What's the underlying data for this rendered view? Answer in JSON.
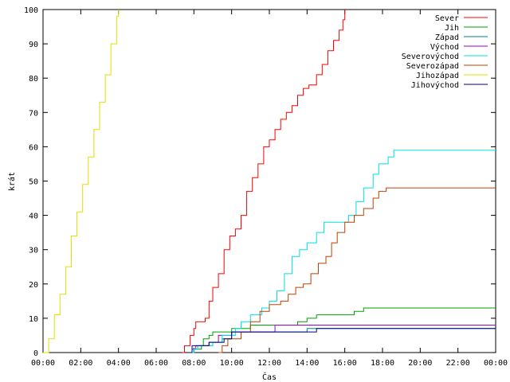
{
  "chart_data": {
    "type": "line",
    "xlabel": "Čas",
    "ylabel": "krát",
    "xlim": [
      0,
      24
    ],
    "ylim": [
      0,
      100
    ],
    "x_ticks": [
      {
        "value": 0,
        "label": "00:00"
      },
      {
        "value": 2,
        "label": "02:00"
      },
      {
        "value": 4,
        "label": "04:00"
      },
      {
        "value": 6,
        "label": "06:00"
      },
      {
        "value": 8,
        "label": "08:00"
      },
      {
        "value": 10,
        "label": "10:00"
      },
      {
        "value": 12,
        "label": "12:00"
      },
      {
        "value": 14,
        "label": "14:00"
      },
      {
        "value": 16,
        "label": "16:00"
      },
      {
        "value": 18,
        "label": "18:00"
      },
      {
        "value": 20,
        "label": "20:00"
      },
      {
        "value": 22,
        "label": "22:00"
      },
      {
        "value": 24,
        "label": "00:00"
      }
    ],
    "y_ticks": [
      {
        "value": 0,
        "label": "0"
      },
      {
        "value": 10,
        "label": "10"
      },
      {
        "value": 20,
        "label": "20"
      },
      {
        "value": 30,
        "label": "30"
      },
      {
        "value": 40,
        "label": "40"
      },
      {
        "value": 50,
        "label": "50"
      },
      {
        "value": 60,
        "label": "60"
      },
      {
        "value": 70,
        "label": "70"
      },
      {
        "value": 80,
        "label": "80"
      },
      {
        "value": 90,
        "label": "90"
      },
      {
        "value": 100,
        "label": "100"
      }
    ],
    "grid": false,
    "legend": "top-right",
    "series": [
      {
        "name": "Sever",
        "color": "#ff0000",
        "points": [
          [
            7.4,
            0
          ],
          [
            7.5,
            2
          ],
          [
            7.7,
            2
          ],
          [
            7.8,
            5
          ],
          [
            8.0,
            7
          ],
          [
            8.1,
            9
          ],
          [
            8.5,
            9
          ],
          [
            8.6,
            10
          ],
          [
            8.8,
            15
          ],
          [
            9.0,
            19
          ],
          [
            9.3,
            23
          ],
          [
            9.6,
            30
          ],
          [
            9.9,
            34
          ],
          [
            10.2,
            36
          ],
          [
            10.5,
            40
          ],
          [
            10.8,
            47
          ],
          [
            11.1,
            51
          ],
          [
            11.4,
            55
          ],
          [
            11.7,
            60
          ],
          [
            12.0,
            62
          ],
          [
            12.3,
            65
          ],
          [
            12.6,
            68
          ],
          [
            12.9,
            70
          ],
          [
            13.2,
            72
          ],
          [
            13.5,
            75
          ],
          [
            13.8,
            77
          ],
          [
            14.1,
            78
          ],
          [
            14.5,
            81
          ],
          [
            14.8,
            84
          ],
          [
            15.1,
            88
          ],
          [
            15.4,
            91
          ],
          [
            15.7,
            94
          ],
          [
            15.9,
            97
          ],
          [
            16.0,
            100
          ]
        ]
      },
      {
        "name": "Jih",
        "color": "#00a000",
        "points": [
          [
            7.9,
            0
          ],
          [
            8.0,
            1
          ],
          [
            8.4,
            2
          ],
          [
            8.5,
            4
          ],
          [
            8.8,
            5
          ],
          [
            9.0,
            6
          ],
          [
            9.8,
            6
          ],
          [
            10.0,
            7
          ],
          [
            11.0,
            8
          ],
          [
            13.5,
            9
          ],
          [
            14.0,
            10
          ],
          [
            14.5,
            11
          ],
          [
            16.5,
            12
          ],
          [
            17.0,
            13
          ],
          [
            24.0,
            13
          ]
        ]
      },
      {
        "name": "Západ",
        "color": "#008080",
        "points": [
          [
            7.9,
            0
          ],
          [
            8.0,
            1
          ],
          [
            8.2,
            2
          ],
          [
            9.0,
            3
          ],
          [
            9.5,
            4
          ],
          [
            10.0,
            6
          ],
          [
            13.0,
            6
          ],
          [
            14.0,
            7
          ],
          [
            24.0,
            7
          ]
        ]
      },
      {
        "name": "Východ",
        "color": "#9900cc",
        "points": [
          [
            7.8,
            0
          ],
          [
            7.9,
            1
          ],
          [
            8.1,
            2
          ],
          [
            8.8,
            3
          ],
          [
            9.3,
            5
          ],
          [
            10.0,
            6
          ],
          [
            12.0,
            6
          ],
          [
            12.3,
            8
          ],
          [
            24.0,
            8
          ]
        ]
      },
      {
        "name": "Severovýchod",
        "color": "#00e0e0",
        "points": [
          [
            7.8,
            0
          ],
          [
            8.0,
            1
          ],
          [
            8.2,
            2
          ],
          [
            9.0,
            3
          ],
          [
            9.5,
            5
          ],
          [
            10.2,
            7
          ],
          [
            10.5,
            9
          ],
          [
            11.0,
            11
          ],
          [
            11.6,
            13
          ],
          [
            12.0,
            15
          ],
          [
            12.4,
            18
          ],
          [
            12.8,
            23
          ],
          [
            13.2,
            28
          ],
          [
            13.6,
            30
          ],
          [
            14.0,
            32
          ],
          [
            14.5,
            35
          ],
          [
            14.9,
            38
          ],
          [
            15.8,
            38
          ],
          [
            16.2,
            40
          ],
          [
            16.6,
            44
          ],
          [
            17.0,
            48
          ],
          [
            17.5,
            52
          ],
          [
            17.8,
            55
          ],
          [
            18.3,
            57
          ],
          [
            18.6,
            59
          ],
          [
            24.0,
            59
          ]
        ]
      },
      {
        "name": "Severozápad",
        "color": "#c04000",
        "points": [
          [
            9.3,
            0
          ],
          [
            9.5,
            2
          ],
          [
            9.8,
            4
          ],
          [
            10.5,
            6
          ],
          [
            11.0,
            9
          ],
          [
            11.5,
            12
          ],
          [
            12.0,
            14
          ],
          [
            12.6,
            15
          ],
          [
            13.0,
            17
          ],
          [
            13.4,
            19
          ],
          [
            13.8,
            20
          ],
          [
            14.2,
            23
          ],
          [
            14.6,
            26
          ],
          [
            15.0,
            28
          ],
          [
            15.3,
            32
          ],
          [
            15.6,
            35
          ],
          [
            16.0,
            38
          ],
          [
            16.5,
            40
          ],
          [
            17.0,
            42
          ],
          [
            17.5,
            45
          ],
          [
            17.8,
            47
          ],
          [
            18.2,
            48
          ],
          [
            24.0,
            48
          ]
        ]
      },
      {
        "name": "Jihozápad",
        "color": "#e0e000",
        "points": [
          [
            0.0,
            0
          ],
          [
            0.3,
            4
          ],
          [
            0.6,
            11
          ],
          [
            0.9,
            17
          ],
          [
            1.2,
            25
          ],
          [
            1.5,
            34
          ],
          [
            1.8,
            41
          ],
          [
            2.1,
            49
          ],
          [
            2.4,
            57
          ],
          [
            2.7,
            65
          ],
          [
            3.0,
            73
          ],
          [
            3.3,
            81
          ],
          [
            3.6,
            90
          ],
          [
            3.9,
            98
          ],
          [
            4.0,
            100
          ]
        ]
      },
      {
        "name": "Jihovýchod",
        "color": "#000080",
        "points": [
          [
            7.8,
            0
          ],
          [
            7.9,
            2
          ],
          [
            8.5,
            2
          ],
          [
            8.8,
            3
          ],
          [
            9.6,
            4
          ],
          [
            10.0,
            6
          ],
          [
            14.0,
            6
          ],
          [
            14.5,
            7
          ],
          [
            24.0,
            7
          ]
        ]
      }
    ]
  }
}
